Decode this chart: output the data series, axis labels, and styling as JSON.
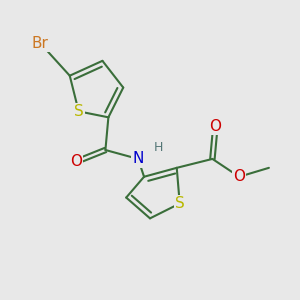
{
  "background_color": "#e8e8e8",
  "bond_color": "#3a6e3a",
  "S_color": "#b8b800",
  "N_color": "#0000cc",
  "O_color": "#cc0000",
  "Br_color": "#cc7722",
  "H_color": "#557777",
  "bond_width": 1.5,
  "font_size": 11,
  "fig_size": [
    3.0,
    3.0
  ],
  "dpi": 100,
  "xlim": [
    0,
    10
  ],
  "ylim": [
    0,
    10
  ]
}
